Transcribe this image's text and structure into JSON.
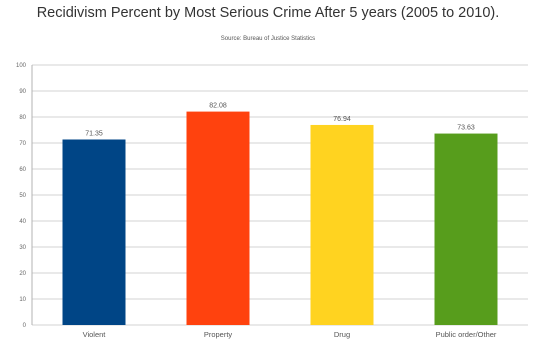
{
  "chart_data": {
    "type": "bar",
    "title": "Recidivism Percent by Most Serious Crime After 5 years (2005 to 2010).",
    "subtitle": "Source: Bureau of Justice Statistics",
    "categories": [
      "Violent",
      "Property",
      "Drug",
      "Public order/Other"
    ],
    "values": [
      71.35,
      82.08,
      76.94,
      73.63
    ],
    "value_labels": [
      "71.35",
      "82.08",
      "76.94",
      "73.63"
    ],
    "colors": [
      "#004586",
      "#ff420e",
      "#ffd320",
      "#579d1c"
    ],
    "ylim": [
      0,
      100
    ],
    "yticks": [
      0,
      10,
      20,
      30,
      40,
      50,
      60,
      70,
      80,
      90,
      100
    ],
    "grid": true,
    "xlabel": "",
    "ylabel": ""
  }
}
